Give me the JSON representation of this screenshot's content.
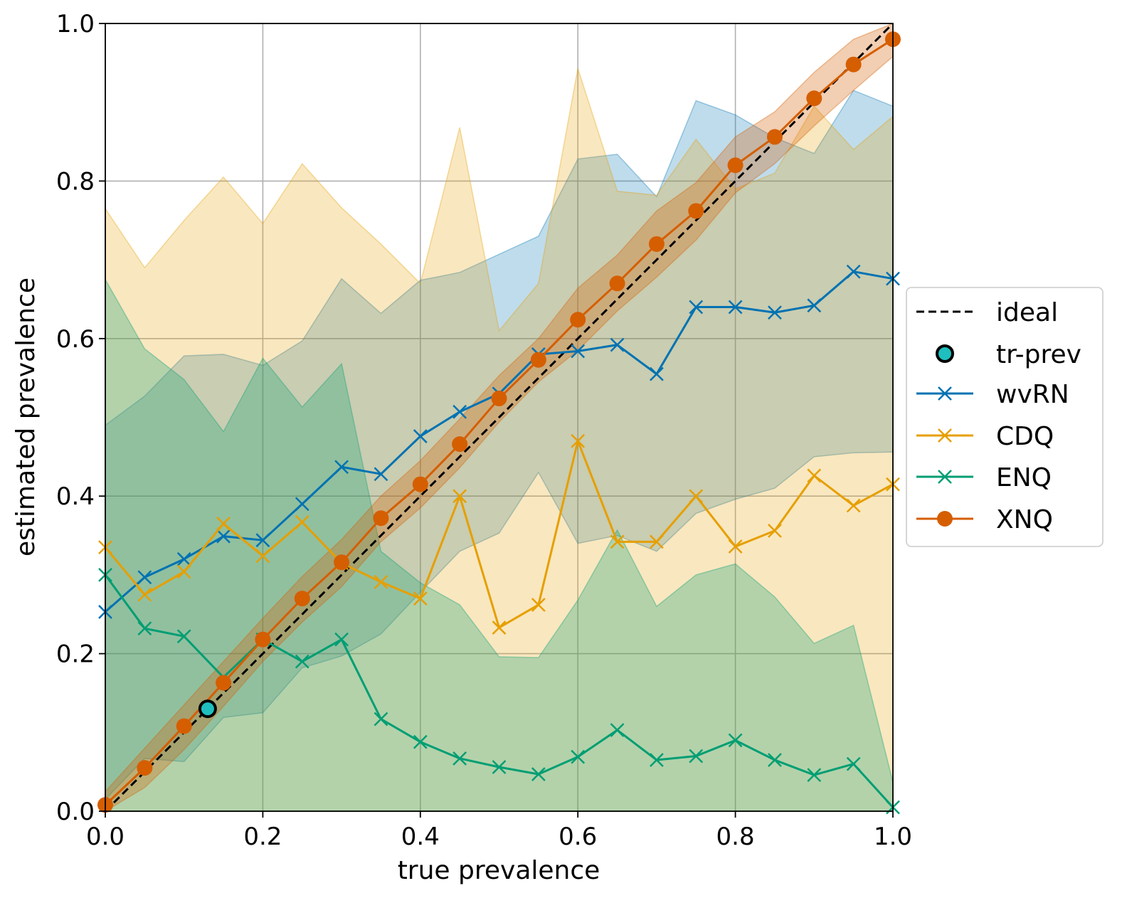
{
  "chart_data": {
    "type": "line",
    "title": "",
    "xlabel": "true prevalence",
    "ylabel": "estimated prevalence",
    "xlim": [
      0,
      1
    ],
    "ylim": [
      0,
      1
    ],
    "grid": true,
    "legend_position": "center-right-outside",
    "xticks": [
      "0.0",
      "0.2",
      "0.4",
      "0.6",
      "0.8",
      "1.0"
    ],
    "yticks": [
      "0.0",
      "0.2",
      "0.4",
      "0.6",
      "0.8",
      "1.0"
    ],
    "x": [
      0.0,
      0.05,
      0.1,
      0.15,
      0.2,
      0.25,
      0.3,
      0.35,
      0.4,
      0.45,
      0.5,
      0.55,
      0.6,
      0.65,
      0.7,
      0.75,
      0.8,
      0.85,
      0.9,
      0.95,
      1.0
    ],
    "ideal": {
      "name": "ideal",
      "color": "#000000",
      "points": [
        [
          0,
          0
        ],
        [
          1,
          1
        ]
      ]
    },
    "tr_prev": {
      "name": "tr-prev",
      "x": 0.13,
      "y": 0.13,
      "color": "#1fbfbf"
    },
    "series": [
      {
        "name": "wvRN",
        "color": "#0072b2",
        "marker": "x",
        "band_opacity": 0.25,
        "values": [
          0.253,
          0.297,
          0.32,
          0.349,
          0.344,
          0.39,
          0.437,
          0.428,
          0.476,
          0.507,
          0.53,
          0.58,
          0.584,
          0.592,
          0.555,
          0.64,
          0.64,
          0.633,
          0.642,
          0.685,
          0.676
        ],
        "upper": [
          0.49,
          0.527,
          0.578,
          0.58,
          0.566,
          0.597,
          0.676,
          0.632,
          0.674,
          0.684,
          0.707,
          0.73,
          0.828,
          0.834,
          0.78,
          0.902,
          0.884,
          0.855,
          0.835,
          0.915,
          0.895
        ],
        "lower": [
          0.015,
          0.067,
          0.063,
          0.119,
          0.125,
          0.182,
          0.197,
          0.225,
          0.278,
          0.33,
          0.353,
          0.43,
          0.34,
          0.35,
          0.33,
          0.378,
          0.396,
          0.41,
          0.45,
          0.455,
          0.456
        ]
      },
      {
        "name": "CDQ",
        "color": "#e69f00",
        "marker": "x",
        "band_opacity": 0.25,
        "values": [
          0.335,
          0.275,
          0.304,
          0.365,
          0.324,
          0.367,
          0.315,
          0.291,
          0.27,
          0.4,
          0.233,
          0.262,
          0.47,
          0.342,
          0.342,
          0.4,
          0.336,
          0.356,
          0.426,
          0.388,
          0.415
        ],
        "upper": [
          0.765,
          0.69,
          0.75,
          0.805,
          0.746,
          0.822,
          0.766,
          0.72,
          0.67,
          0.868,
          0.61,
          0.67,
          0.943,
          0.787,
          0.782,
          0.853,
          0.79,
          0.81,
          0.895,
          0.84,
          0.882
        ],
        "lower": [
          0.0,
          0.0,
          0.0,
          0.0,
          0.0,
          0.0,
          0.0,
          0.0,
          0.0,
          0.0,
          0.0,
          0.0,
          0.0,
          0.0,
          0.0,
          0.0,
          0.0,
          0.0,
          0.0,
          0.0,
          0.0
        ]
      },
      {
        "name": "ENQ",
        "color": "#009e73",
        "marker": "x",
        "band_opacity": 0.28,
        "values": [
          0.3,
          0.232,
          0.222,
          0.17,
          0.218,
          0.19,
          0.218,
          0.117,
          0.088,
          0.067,
          0.056,
          0.047,
          0.069,
          0.103,
          0.065,
          0.07,
          0.09,
          0.065,
          0.046,
          0.06,
          0.005
        ],
        "upper": [
          0.675,
          0.587,
          0.548,
          0.482,
          0.575,
          0.513,
          0.568,
          0.33,
          0.29,
          0.262,
          0.196,
          0.195,
          0.268,
          0.357,
          0.26,
          0.3,
          0.314,
          0.272,
          0.213,
          0.236,
          0.037
        ],
        "lower": [
          0.0,
          0.0,
          0.0,
          0.0,
          0.0,
          0.0,
          0.0,
          0.0,
          0.0,
          0.0,
          0.0,
          0.0,
          0.0,
          0.0,
          0.0,
          0.0,
          0.0,
          0.0,
          0.0,
          0.0,
          0.0
        ]
      },
      {
        "name": "XNQ",
        "color": "#d55e00",
        "marker": "o",
        "band_opacity": 0.3,
        "values": [
          0.008,
          0.055,
          0.108,
          0.163,
          0.218,
          0.27,
          0.316,
          0.372,
          0.415,
          0.466,
          0.524,
          0.573,
          0.624,
          0.67,
          0.72,
          0.762,
          0.82,
          0.856,
          0.905,
          0.948,
          0.98
        ],
        "upper": [
          0.025,
          0.08,
          0.135,
          0.19,
          0.245,
          0.298,
          0.345,
          0.4,
          0.445,
          0.498,
          0.553,
          0.6,
          0.664,
          0.706,
          0.762,
          0.798,
          0.856,
          0.888,
          0.938,
          0.98,
          1.0
        ],
        "lower": [
          0.0,
          0.03,
          0.078,
          0.133,
          0.19,
          0.24,
          0.285,
          0.342,
          0.385,
          0.436,
          0.494,
          0.545,
          0.585,
          0.635,
          0.678,
          0.725,
          0.785,
          0.822,
          0.87,
          0.915,
          0.958
        ]
      }
    ]
  }
}
